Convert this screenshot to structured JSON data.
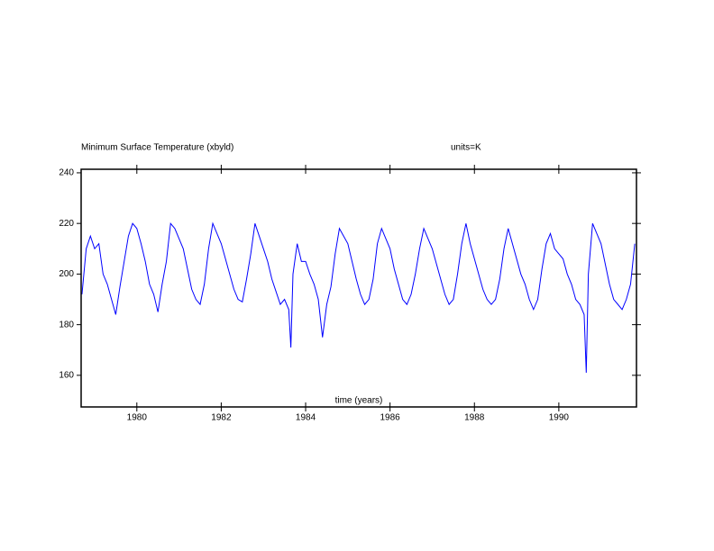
{
  "chart_data": {
    "type": "line",
    "title": "Minimum Surface Temperature (xbyld)",
    "units_label": "units=K",
    "x_label": "time (years)",
    "x": [
      1978.7,
      1978.8,
      1978.9,
      1979.0,
      1979.1,
      1979.2,
      1979.3,
      1979.4,
      1979.5,
      1979.6,
      1979.7,
      1979.8,
      1979.9,
      1980.0,
      1980.1,
      1980.2,
      1980.3,
      1980.4,
      1980.5,
      1980.6,
      1980.7,
      1980.8,
      1980.9,
      1981.0,
      1981.1,
      1981.2,
      1981.3,
      1981.4,
      1981.5,
      1981.6,
      1981.7,
      1981.8,
      1981.9,
      1982.0,
      1982.1,
      1982.2,
      1982.3,
      1982.4,
      1982.5,
      1982.6,
      1982.7,
      1982.8,
      1982.9,
      1983.0,
      1983.1,
      1983.2,
      1983.3,
      1983.4,
      1983.5,
      1983.6,
      1983.65,
      1983.7,
      1983.8,
      1983.9,
      1984.0,
      1984.1,
      1984.2,
      1984.3,
      1984.4,
      1984.5,
      1984.6,
      1984.7,
      1984.8,
      1984.9,
      1985.0,
      1985.1,
      1985.2,
      1985.3,
      1985.4,
      1985.5,
      1985.6,
      1985.7,
      1985.8,
      1985.9,
      1986.0,
      1986.1,
      1986.2,
      1986.3,
      1986.4,
      1986.5,
      1986.6,
      1986.7,
      1986.8,
      1986.9,
      1987.0,
      1987.1,
      1987.2,
      1987.3,
      1987.4,
      1987.5,
      1987.6,
      1987.7,
      1987.8,
      1987.9,
      1988.0,
      1988.1,
      1988.2,
      1988.3,
      1988.4,
      1988.5,
      1988.6,
      1988.7,
      1988.8,
      1988.9,
      1989.0,
      1989.1,
      1989.2,
      1989.3,
      1989.4,
      1989.5,
      1989.6,
      1989.7,
      1989.8,
      1989.9,
      1990.0,
      1990.1,
      1990.2,
      1990.3,
      1990.4,
      1990.5,
      1990.6,
      1990.65,
      1990.7,
      1990.8,
      1990.9,
      1991.0,
      1991.1,
      1991.2,
      1991.3,
      1991.4,
      1991.5,
      1991.6,
      1991.7,
      1991.8
    ],
    "series": [
      {
        "name": "Minimum Surface Temperature",
        "color": "#0000ff",
        "values": [
          192,
          210,
          215,
          210,
          212,
          200,
          196,
          190,
          184,
          195,
          205,
          215,
          220,
          218,
          212,
          205,
          196,
          192,
          185,
          196,
          205,
          220,
          218,
          214,
          210,
          202,
          194,
          190,
          188,
          196,
          210,
          220,
          216,
          212,
          206,
          200,
          194,
          190,
          189,
          198,
          208,
          220,
          215,
          210,
          205,
          198,
          193,
          188,
          190,
          186,
          171,
          200,
          212,
          205,
          205,
          200,
          196,
          190,
          175,
          188,
          195,
          208,
          218,
          215,
          212,
          205,
          198,
          192,
          188,
          190,
          198,
          212,
          218,
          214,
          210,
          202,
          196,
          190,
          188,
          192,
          200,
          210,
          218,
          214,
          210,
          204,
          198,
          192,
          188,
          190,
          200,
          212,
          220,
          212,
          206,
          200,
          194,
          190,
          188,
          190,
          198,
          210,
          218,
          212,
          206,
          200,
          196,
          190,
          186,
          190,
          202,
          212,
          216,
          210,
          208,
          206,
          200,
          196,
          190,
          188,
          184,
          161,
          200,
          220,
          216,
          212,
          204,
          196,
          190,
          188,
          186,
          190,
          196,
          212
        ]
      }
    ],
    "xlim": [
      1978.68,
      1991.84
    ],
    "xticks": [
      1980,
      1982,
      1984,
      1986,
      1988,
      1990
    ],
    "ylim": [
      147.5,
      241.4
    ],
    "yticks": [
      160,
      180,
      200,
      220,
      240
    ],
    "grid": false
  }
}
